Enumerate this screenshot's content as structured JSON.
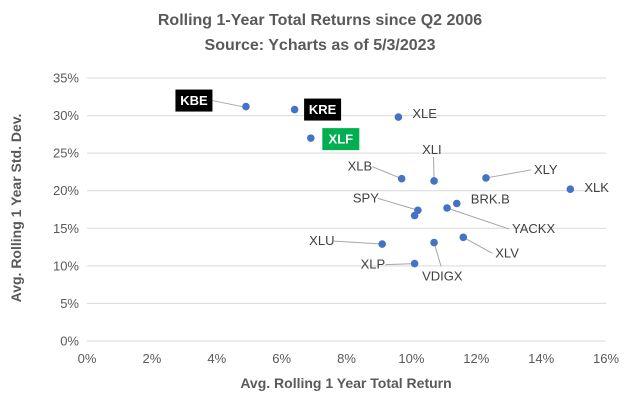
{
  "chart_data": {
    "type": "scatter",
    "title": "Rolling 1-Year Total Returns since Q2 2006",
    "subtitle": "Source: Ycharts as of 5/3/2023",
    "xlabel": "Avg. Rolling 1 Year Total Return",
    "ylabel": "Avg. Rolling 1 Year Std. Dev.",
    "xlim": [
      0,
      16
    ],
    "ylim": [
      0,
      35
    ],
    "x_ticks": [
      "0%",
      "2%",
      "4%",
      "6%",
      "8%",
      "10%",
      "12%",
      "14%",
      "16%"
    ],
    "y_ticks": [
      "0%",
      "5%",
      "10%",
      "15%",
      "20%",
      "25%",
      "30%",
      "35%"
    ],
    "grid": true,
    "point_color": "#4472c4",
    "points": [
      {
        "label": "KBE",
        "x": 4.9,
        "y": 31.2,
        "highlight": "#000000"
      },
      {
        "label": "KRE",
        "x": 6.4,
        "y": 30.8,
        "highlight": "#000000"
      },
      {
        "label": "XLF",
        "x": 6.9,
        "y": 27.0,
        "highlight": "#00b050"
      },
      {
        "label": "XLE",
        "x": 9.6,
        "y": 29.8
      },
      {
        "label": "XLB",
        "x": 9.7,
        "y": 21.6
      },
      {
        "label": "XLI",
        "x": 10.7,
        "y": 21.3
      },
      {
        "label": "XLY",
        "x": 12.3,
        "y": 21.7
      },
      {
        "label": "XLK",
        "x": 14.9,
        "y": 20.2
      },
      {
        "label": "SPY",
        "x": 10.2,
        "y": 17.4
      },
      {
        "label": "BRK.B",
        "x": 11.4,
        "y": 18.3
      },
      {
        "label": "YACKX",
        "x": 11.1,
        "y": 17.7
      },
      {
        "label": "XLV",
        "x": 11.6,
        "y": 13.8
      },
      {
        "label": "VDIGX",
        "x": 10.7,
        "y": 13.1
      },
      {
        "label": "XLU",
        "x": 9.1,
        "y": 12.9
      },
      {
        "label": "XLP",
        "x": 10.1,
        "y": 10.3
      },
      {
        "label": "",
        "x": 10.1,
        "y": 16.7
      }
    ]
  }
}
